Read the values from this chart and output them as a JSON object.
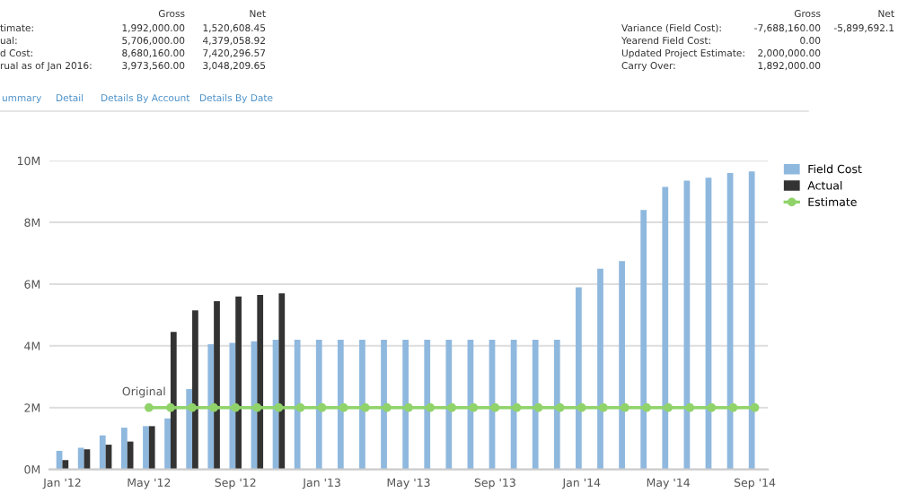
{
  "chart_data": {
    "type": "bar",
    "categories": [
      "Jan '12",
      null,
      null,
      null,
      "May '12",
      null,
      null,
      null,
      "Sep '12",
      null,
      null,
      null,
      "Jan '13",
      null,
      null,
      null,
      "May '13",
      null,
      null,
      null,
      "Sep '13",
      null,
      null,
      null,
      "Jan '14",
      null,
      null,
      null,
      "May '14",
      null,
      null,
      null,
      "Sep '14"
    ],
    "series": [
      {
        "name": "Field Cost",
        "color": "#8fb8de",
        "values": [
          0.6,
          0.7,
          1.1,
          1.35,
          1.4,
          1.65,
          2.6,
          4.05,
          4.1,
          4.15,
          4.2,
          4.2,
          4.2,
          4.2,
          4.2,
          4.2,
          4.2,
          4.2,
          4.2,
          4.2,
          4.2,
          4.2,
          4.2,
          4.2,
          5.9,
          6.5,
          6.75,
          8.4,
          9.15,
          9.35,
          9.45,
          9.6,
          9.65
        ]
      },
      {
        "name": "Actual",
        "color": "#333333",
        "values": [
          0.3,
          0.65,
          0.8,
          0.9,
          1.4,
          4.45,
          5.15,
          5.45,
          5.6,
          5.65,
          5.7,
          null,
          null,
          null,
          null,
          null,
          null,
          null,
          null,
          null,
          null,
          null,
          null,
          null,
          null,
          null,
          null,
          null,
          null,
          null,
          null,
          null,
          null
        ]
      },
      {
        "name": "Estimate",
        "type": "line",
        "color": "#90d36a",
        "marker": "circle",
        "values": [
          null,
          null,
          null,
          null,
          2,
          2,
          2,
          2,
          2,
          2,
          2,
          2,
          2,
          2,
          2,
          2,
          2,
          2,
          2,
          2,
          2,
          2,
          2,
          2,
          2,
          2,
          2,
          2,
          2,
          2,
          2,
          2,
          2
        ]
      }
    ],
    "ylim": [
      0,
      10
    ],
    "yticks": [
      {
        "value": 0,
        "label": "0M"
      },
      {
        "value": 2,
        "label": "2M"
      },
      {
        "value": 4,
        "label": "4M"
      },
      {
        "value": 6,
        "label": "6M"
      },
      {
        "value": 8,
        "label": "8M"
      },
      {
        "value": 10,
        "label": "10M"
      }
    ],
    "grid": "y",
    "legend": "top right",
    "annotations": [
      {
        "text": "Original",
        "x": "May '12",
        "y": 2
      },
      "Gross",
      "Net",
      "timate:",
      "1,992,000.00",
      "1,520,608.45",
      "ual:",
      "5,706,000.00",
      "4,379,058.92",
      "d Cost:",
      "8,680,160.00",
      "7,420,296.57",
      "rual as of Jan 2016:",
      "3,973,560.00",
      "3,048,209.65",
      "Gross",
      "Net",
      "Variance (Field Cost):",
      "-7,688,160.00",
      "-5,899,692.1",
      "Yearend Field Cost:",
      "0.00",
      "Updated Project Estimate:",
      "2,000,000.00",
      "Carry Over:",
      "1,892,000.00",
      "ummary",
      "Detail",
      "Details By Account",
      "Details By Date"
    ]
  }
}
